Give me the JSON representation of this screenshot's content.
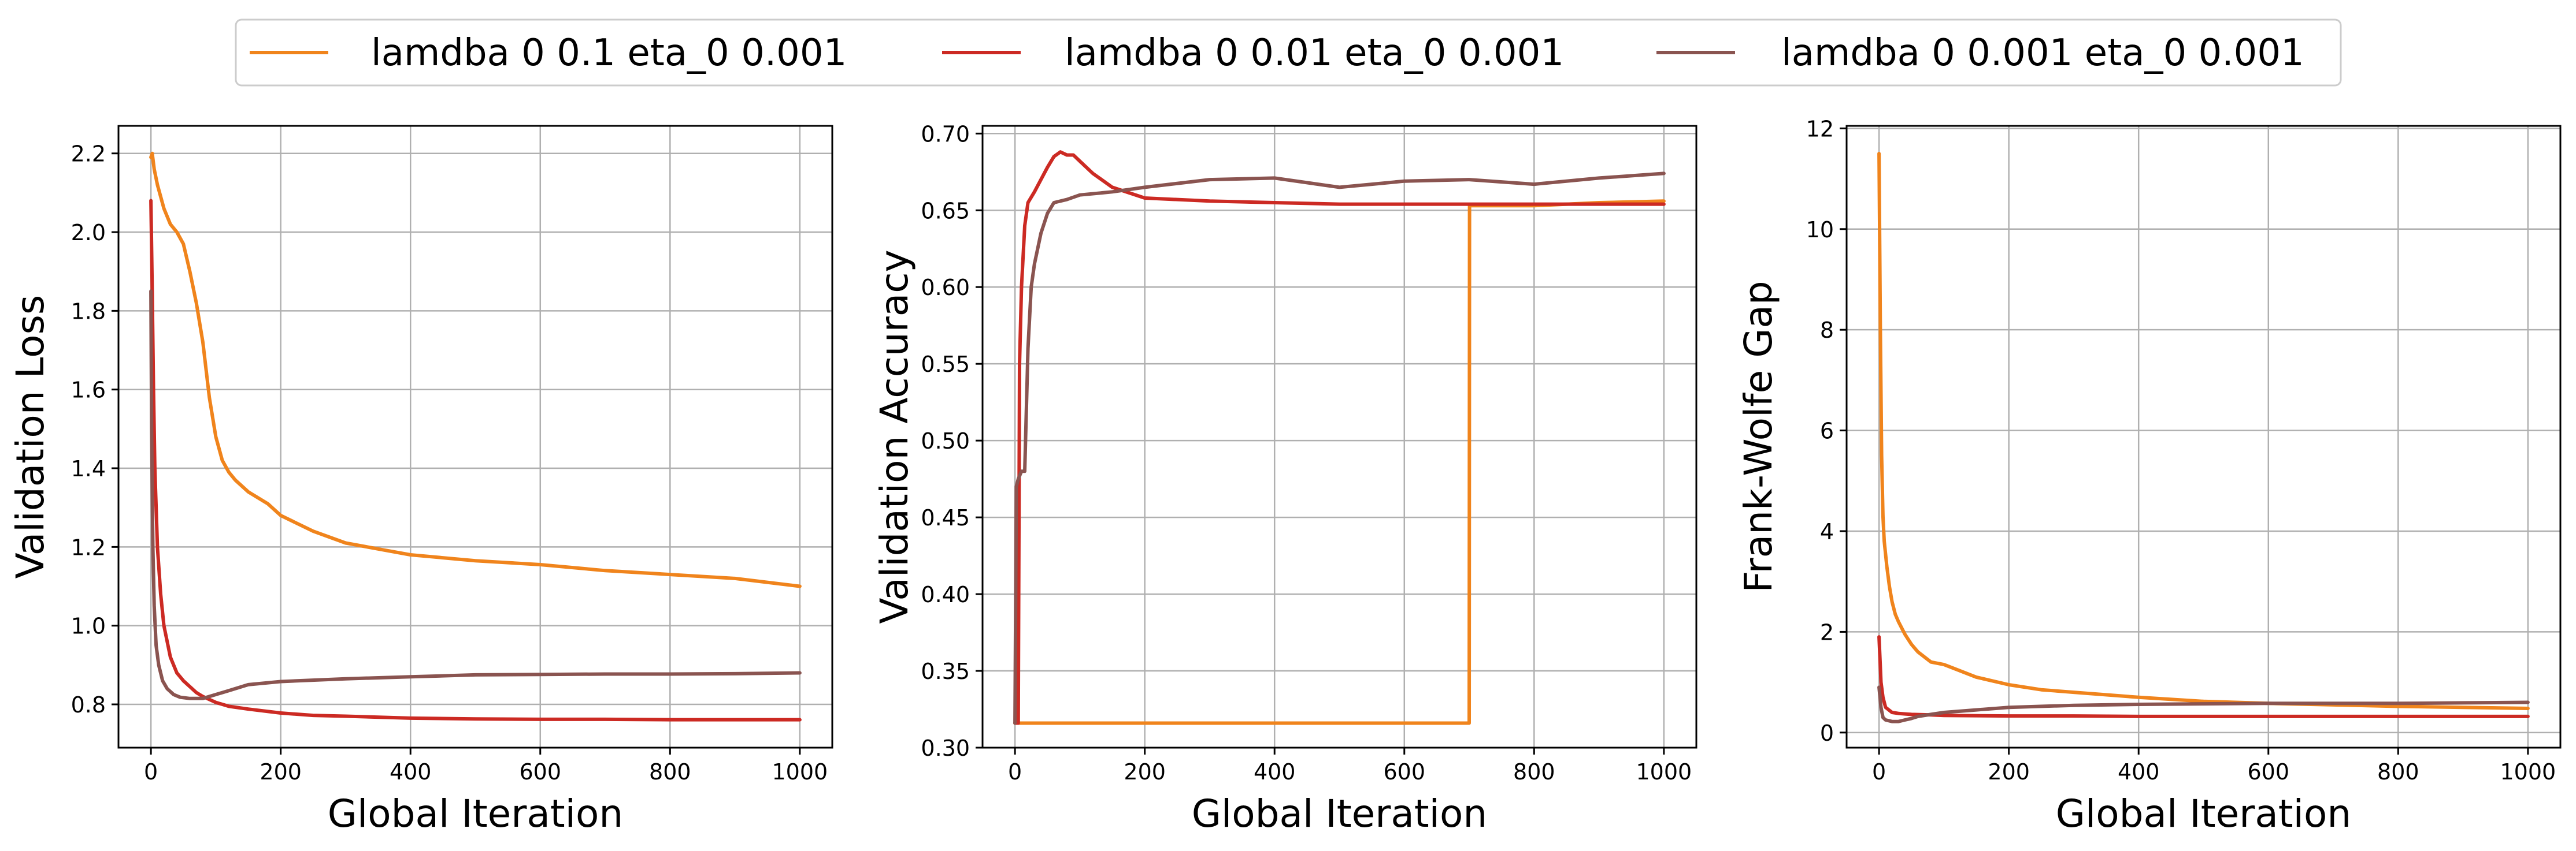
{
  "legend": {
    "placement": "top-center",
    "entries": [
      {
        "label": "lamdba 0 0.1 eta_0 0.001",
        "color": "#f0841c"
      },
      {
        "label": "lamdba 0 0.01 eta_0 0.001",
        "color": "#cc2a23"
      },
      {
        "label": "lamdba 0 0.001 eta_0 0.001",
        "color": "#8a5450"
      }
    ]
  },
  "colors": {
    "grid": "#b0b0b0",
    "axes": "#000000"
  },
  "chart_data": [
    {
      "type": "line",
      "xlabel": "Global Iteration",
      "ylabel": "Validation Loss",
      "xlim": [
        -50,
        1050
      ],
      "ylim": [
        0.69,
        2.27
      ],
      "xticks": [
        0,
        200,
        400,
        600,
        800,
        1000
      ],
      "xtick_labels": [
        "0",
        "200",
        "400",
        "600",
        "800",
        "1000"
      ],
      "yticks": [
        0.8,
        1.0,
        1.2,
        1.4,
        1.6,
        1.8,
        2.0,
        2.2
      ],
      "ytick_labels": [
        "0.8",
        "1.0",
        "1.2",
        "1.4",
        "1.6",
        "1.8",
        "2.0",
        "2.2"
      ],
      "grid": true,
      "series": [
        {
          "name": "lamdba 0 0.1 eta_0 0.001",
          "color": "#f0841c",
          "x": [
            0,
            2,
            5,
            10,
            20,
            30,
            40,
            50,
            60,
            70,
            80,
            90,
            100,
            110,
            120,
            130,
            150,
            180,
            200,
            250,
            300,
            350,
            400,
            500,
            600,
            700,
            800,
            900,
            1000
          ],
          "y": [
            2.19,
            2.2,
            2.16,
            2.12,
            2.06,
            2.02,
            2.0,
            1.97,
            1.9,
            1.82,
            1.72,
            1.58,
            1.48,
            1.42,
            1.39,
            1.37,
            1.34,
            1.31,
            1.28,
            1.24,
            1.21,
            1.195,
            1.18,
            1.165,
            1.155,
            1.14,
            1.13,
            1.12,
            1.1
          ]
        },
        {
          "name": "lamdba 0 0.01 eta_0 0.001",
          "color": "#cc2a23",
          "x": [
            0,
            2,
            4,
            6,
            10,
            15,
            20,
            30,
            40,
            50,
            60,
            70,
            80,
            100,
            120,
            150,
            200,
            250,
            300,
            400,
            500,
            600,
            700,
            800,
            900,
            1000
          ],
          "y": [
            2.08,
            1.85,
            1.6,
            1.4,
            1.2,
            1.08,
            1.0,
            0.92,
            0.88,
            0.86,
            0.845,
            0.83,
            0.82,
            0.805,
            0.795,
            0.788,
            0.778,
            0.772,
            0.77,
            0.765,
            0.763,
            0.762,
            0.762,
            0.761,
            0.761,
            0.761
          ]
        },
        {
          "name": "lamdba 0 0.001 eta_0 0.001",
          "color": "#8a5450",
          "x": [
            0,
            1,
            3,
            5,
            8,
            12,
            18,
            25,
            35,
            45,
            60,
            80,
            100,
            120,
            150,
            200,
            300,
            400,
            500,
            600,
            700,
            800,
            900,
            1000
          ],
          "y": [
            1.85,
            1.5,
            1.2,
            1.05,
            0.95,
            0.9,
            0.86,
            0.84,
            0.825,
            0.818,
            0.815,
            0.815,
            0.825,
            0.835,
            0.85,
            0.858,
            0.865,
            0.87,
            0.875,
            0.876,
            0.877,
            0.877,
            0.878,
            0.88
          ]
        }
      ]
    },
    {
      "type": "line",
      "xlabel": "Global Iteration",
      "ylabel": "Validation Accuracy",
      "xlim": [
        -50,
        1050
      ],
      "ylim": [
        0.3,
        0.705
      ],
      "xticks": [
        0,
        200,
        400,
        600,
        800,
        1000
      ],
      "xtick_labels": [
        "0",
        "200",
        "400",
        "600",
        "800",
        "1000"
      ],
      "yticks": [
        0.3,
        0.35,
        0.4,
        0.45,
        0.5,
        0.55,
        0.6,
        0.65,
        0.7
      ],
      "ytick_labels": [
        "0.30",
        "0.35",
        "0.40",
        "0.45",
        "0.50",
        "0.55",
        "0.60",
        "0.65",
        "0.70"
      ],
      "grid": true,
      "series": [
        {
          "name": "lamdba 0 0.1 eta_0 0.001",
          "color": "#f0841c",
          "x": [
            0,
            700,
            700.5,
            705,
            800,
            900,
            1000
          ],
          "y": [
            0.316,
            0.316,
            0.653,
            0.653,
            0.653,
            0.655,
            0.656
          ]
        },
        {
          "name": "lamdba 0 0.01 eta_0 0.001",
          "color": "#cc2a23",
          "x": [
            0,
            5,
            7,
            10,
            15,
            20,
            30,
            40,
            50,
            60,
            70,
            80,
            90,
            100,
            120,
            150,
            200,
            300,
            400,
            500,
            600,
            700,
            800,
            900,
            1000
          ],
          "y": [
            0.316,
            0.316,
            0.55,
            0.6,
            0.64,
            0.655,
            0.662,
            0.67,
            0.678,
            0.685,
            0.688,
            0.686,
            0.686,
            0.682,
            0.674,
            0.665,
            0.658,
            0.656,
            0.655,
            0.654,
            0.654,
            0.654,
            0.654,
            0.654,
            0.654
          ]
        },
        {
          "name": "lamdba 0 0.001 eta_0 0.001",
          "color": "#8a5450",
          "x": [
            0,
            2,
            5,
            10,
            15,
            20,
            25,
            30,
            40,
            50,
            60,
            80,
            100,
            150,
            200,
            300,
            400,
            450,
            500,
            550,
            600,
            700,
            800,
            900,
            1000
          ],
          "y": [
            0.316,
            0.47,
            0.475,
            0.48,
            0.48,
            0.56,
            0.6,
            0.615,
            0.635,
            0.648,
            0.655,
            0.657,
            0.66,
            0.662,
            0.665,
            0.67,
            0.671,
            0.668,
            0.665,
            0.667,
            0.669,
            0.67,
            0.667,
            0.671,
            0.674
          ]
        }
      ]
    },
    {
      "type": "line",
      "xlabel": "Global Iteration",
      "ylabel": "Frank-Wolfe Gap",
      "xlim": [
        -50,
        1050
      ],
      "ylim": [
        -0.3,
        12.05
      ],
      "xticks": [
        0,
        200,
        400,
        600,
        800,
        1000
      ],
      "xtick_labels": [
        "0",
        "200",
        "400",
        "600",
        "800",
        "1000"
      ],
      "yticks": [
        0,
        2,
        4,
        6,
        8,
        10,
        12
      ],
      "ytick_labels": [
        "0",
        "2",
        "4",
        "6",
        "8",
        "10",
        "12"
      ],
      "grid": true,
      "series": [
        {
          "name": "lamdba 0 0.1 eta_0 0.001",
          "color": "#f0841c",
          "x": [
            0,
            2,
            4,
            6,
            8,
            12,
            16,
            20,
            25,
            30,
            40,
            50,
            60,
            80,
            100,
            120,
            150,
            200,
            250,
            300,
            400,
            500,
            600,
            700,
            800,
            900,
            1000
          ],
          "y": [
            11.5,
            8.0,
            5.5,
            4.3,
            3.8,
            3.3,
            2.9,
            2.6,
            2.35,
            2.2,
            1.95,
            1.75,
            1.6,
            1.4,
            1.35,
            1.25,
            1.1,
            0.95,
            0.85,
            0.8,
            0.7,
            0.62,
            0.58,
            0.55,
            0.52,
            0.5,
            0.48
          ]
        },
        {
          "name": "lamdba 0 0.01 eta_0 0.001",
          "color": "#cc2a23",
          "x": [
            0,
            3,
            6,
            10,
            20,
            30,
            50,
            80,
            100,
            200,
            300,
            400,
            500,
            600,
            700,
            800,
            900,
            1000
          ],
          "y": [
            1.9,
            1.0,
            0.7,
            0.5,
            0.4,
            0.38,
            0.36,
            0.35,
            0.34,
            0.33,
            0.33,
            0.32,
            0.32,
            0.32,
            0.32,
            0.32,
            0.32,
            0.32
          ]
        },
        {
          "name": "lamdba 0 0.001 eta_0 0.001",
          "color": "#8a5450",
          "x": [
            0,
            3,
            6,
            10,
            20,
            30,
            40,
            50,
            60,
            80,
            100,
            150,
            200,
            300,
            400,
            500,
            600,
            700,
            800,
            900,
            1000
          ],
          "y": [
            0.9,
            0.5,
            0.3,
            0.25,
            0.22,
            0.22,
            0.25,
            0.28,
            0.32,
            0.36,
            0.4,
            0.45,
            0.5,
            0.54,
            0.56,
            0.57,
            0.58,
            0.58,
            0.58,
            0.59,
            0.6
          ]
        }
      ]
    }
  ]
}
